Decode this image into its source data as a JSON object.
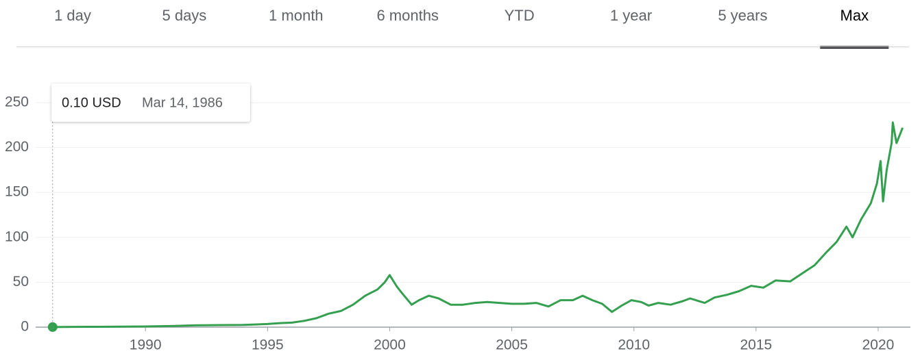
{
  "tabs": {
    "items": [
      "1 day",
      "5 days",
      "1 month",
      "6 months",
      "YTD",
      "1 year",
      "5 years",
      "Max"
    ],
    "active": 7
  },
  "tooltip": {
    "value": "0.10 USD",
    "date": "Mar 14, 1986"
  },
  "chart_data": {
    "type": "line",
    "color": "#34a04f",
    "x": [
      1986.2,
      1987,
      1988,
      1989,
      1990,
      1991,
      1992,
      1993,
      1994,
      1995,
      1995.5,
      1996,
      1996.5,
      1997,
      1997.5,
      1998,
      1998.5,
      1999,
      1999.5,
      1999.8,
      2000.0,
      2000.3,
      2000.5,
      2000.9,
      2001.2,
      2001.6,
      2002,
      2002.5,
      2003,
      2003.5,
      2004,
      2004.5,
      2005,
      2005.5,
      2006,
      2006.5,
      2007,
      2007.5,
      2007.9,
      2008.3,
      2008.7,
      2009.1,
      2009.5,
      2009.9,
      2010.3,
      2010.6,
      2011,
      2011.5,
      2012,
      2012.3,
      2012.9,
      2013.3,
      2013.8,
      2014.3,
      2014.8,
      2015.3,
      2015.8,
      2016.4,
      2016.9,
      2017.4,
      2017.9,
      2018.3,
      2018.7,
      2018.95,
      2019.3,
      2019.7,
      2019.95,
      2020.1,
      2020.2,
      2020.35,
      2020.55,
      2020.6,
      2020.75,
      2020.9,
      2021.0
    ],
    "values": [
      0.1,
      0.3,
      0.4,
      0.5,
      0.8,
      1.2,
      2,
      2.3,
      2.5,
      3.5,
      4.5,
      5,
      7,
      10,
      15,
      18,
      25,
      35,
      42,
      50,
      58,
      45,
      38,
      25,
      30,
      35,
      32,
      25,
      25,
      27,
      28,
      27,
      26,
      26,
      27,
      23,
      30,
      30,
      35,
      30,
      26,
      17,
      24,
      30,
      28,
      24,
      27,
      25,
      29,
      32,
      27,
      33,
      36,
      40,
      46,
      44,
      52,
      51,
      60,
      69,
      84,
      95,
      112,
      100,
      120,
      138,
      160,
      185,
      140,
      175,
      205,
      228,
      205,
      215,
      222
    ],
    "xlim": [
      1986.15,
      2021.32
    ],
    "ylim": [
      0,
      250
    ],
    "xticks": [
      1990,
      1995,
      2000,
      2005,
      2010,
      2015,
      2020
    ],
    "yticks": [
      0,
      50,
      100,
      150,
      200,
      250
    ],
    "grid": true
  }
}
